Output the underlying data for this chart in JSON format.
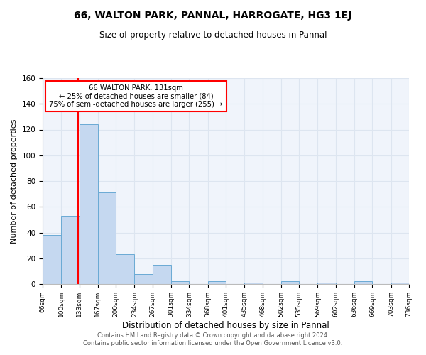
{
  "title": "66, WALTON PARK, PANNAL, HARROGATE, HG3 1EJ",
  "subtitle": "Size of property relative to detached houses in Pannal",
  "xlabel": "Distribution of detached houses by size in Pannal",
  "ylabel": "Number of detached properties",
  "footnote1": "Contains HM Land Registry data © Crown copyright and database right 2024.",
  "footnote2": "Contains public sector information licensed under the Open Government Licence v3.0.",
  "bar_edges": [
    66,
    100,
    133,
    167,
    200,
    234,
    267,
    301,
    334,
    368,
    401,
    435,
    468,
    502,
    535,
    569,
    602,
    636,
    669,
    703,
    736
  ],
  "bar_heights": [
    38,
    53,
    124,
    71,
    23,
    8,
    15,
    2,
    0,
    2,
    0,
    1,
    0,
    2,
    0,
    1,
    0,
    2,
    0,
    1
  ],
  "bar_color": "#c5d8f0",
  "bar_edge_color": "#6aaad4",
  "red_line_x": 131,
  "annotation_text1": "66 WALTON PARK: 131sqm",
  "annotation_text2": "← 25% of detached houses are smaller (84)",
  "annotation_text3": "75% of semi-detached houses are larger (255) →",
  "annotation_box_color": "white",
  "annotation_box_edgecolor": "red",
  "red_line_color": "red",
  "ylim": [
    0,
    160
  ],
  "yticks": [
    0,
    20,
    40,
    60,
    80,
    100,
    120,
    140,
    160
  ],
  "tick_labels": [
    "66sqm",
    "100sqm",
    "133sqm",
    "167sqm",
    "200sqm",
    "234sqm",
    "267sqm",
    "301sqm",
    "334sqm",
    "368sqm",
    "401sqm",
    "435sqm",
    "468sqm",
    "502sqm",
    "535sqm",
    "569sqm",
    "602sqm",
    "636sqm",
    "669sqm",
    "703sqm",
    "736sqm"
  ],
  "grid_color": "#dde5f0",
  "bg_color": "#ffffff",
  "plot_bg_color": "#f0f4fb"
}
